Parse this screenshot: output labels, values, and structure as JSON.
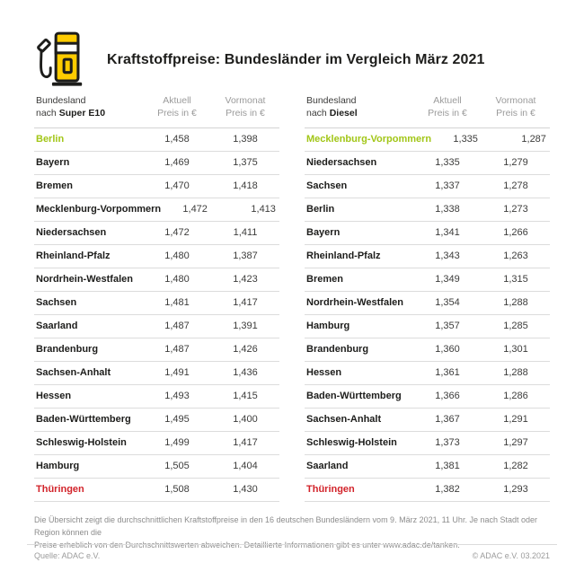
{
  "header": {
    "title": "Kraftstoffpreise: Bundesländer im Vergleich März 2021"
  },
  "colors": {
    "brand_yellow": "#FFCC00",
    "outline_black": "#1d1d1b",
    "cheapest_green": "#A2C617",
    "most_expensive_red": "#D2232A",
    "header_gray": "#9B9B9B",
    "separator_gray": "#DCDCDC"
  },
  "tables": [
    {
      "header": {
        "name_line1": "Bundesland",
        "name_line2_prefix": "nach ",
        "fuel_type": "Super E10",
        "current_line1": "Aktuell",
        "current_line2": "Preis in €",
        "previous_line1": "Vormonat",
        "previous_line2": "Preis in €"
      },
      "rows": [
        {
          "state": "Berlin",
          "current": "1,458",
          "previous": "1,398",
          "highlight": "green"
        },
        {
          "state": "Bayern",
          "current": "1,469",
          "previous": "1,375",
          "highlight": "none"
        },
        {
          "state": "Bremen",
          "current": "1,470",
          "previous": "1,418",
          "highlight": "none"
        },
        {
          "state": "Mecklenburg-Vorpommern",
          "current": "1,472",
          "previous": "1,413",
          "highlight": "none"
        },
        {
          "state": "Niedersachsen",
          "current": "1,472",
          "previous": "1,411",
          "highlight": "none"
        },
        {
          "state": "Rheinland-Pfalz",
          "current": "1,480",
          "previous": "1,387",
          "highlight": "none"
        },
        {
          "state": "Nordrhein-Westfalen",
          "current": "1,480",
          "previous": "1,423",
          "highlight": "none"
        },
        {
          "state": "Sachsen",
          "current": "1,481",
          "previous": "1,417",
          "highlight": "none"
        },
        {
          "state": "Saarland",
          "current": "1,487",
          "previous": "1,391",
          "highlight": "none"
        },
        {
          "state": "Brandenburg",
          "current": "1,487",
          "previous": "1,426",
          "highlight": "none"
        },
        {
          "state": "Sachsen-Anhalt",
          "current": "1,491",
          "previous": "1,436",
          "highlight": "none"
        },
        {
          "state": "Hessen",
          "current": "1,493",
          "previous": "1,415",
          "highlight": "none"
        },
        {
          "state": "Baden-Württemberg",
          "current": "1,495",
          "previous": "1,400",
          "highlight": "none"
        },
        {
          "state": "Schleswig-Holstein",
          "current": "1,499",
          "previous": "1,417",
          "highlight": "none"
        },
        {
          "state": "Hamburg",
          "current": "1,505",
          "previous": "1,404",
          "highlight": "none"
        },
        {
          "state": "Thüringen",
          "current": "1,508",
          "previous": "1,430",
          "highlight": "red"
        }
      ]
    },
    {
      "header": {
        "name_line1": "Bundesland",
        "name_line2_prefix": "nach ",
        "fuel_type": "Diesel",
        "current_line1": "Aktuell",
        "current_line2": "Preis in €",
        "previous_line1": "Vormonat",
        "previous_line2": "Preis in €"
      },
      "rows": [
        {
          "state": "Mecklenburg-Vorpommern",
          "current": "1,335",
          "previous": "1,287",
          "highlight": "green"
        },
        {
          "state": "Niedersachsen",
          "current": "1,335",
          "previous": "1,279",
          "highlight": "none"
        },
        {
          "state": "Sachsen",
          "current": "1,337",
          "previous": "1,278",
          "highlight": "none"
        },
        {
          "state": "Berlin",
          "current": "1,338",
          "previous": "1,273",
          "highlight": "none"
        },
        {
          "state": "Bayern",
          "current": "1,341",
          "previous": "1,266",
          "highlight": "none"
        },
        {
          "state": "Rheinland-Pfalz",
          "current": "1,343",
          "previous": "1,263",
          "highlight": "none"
        },
        {
          "state": "Bremen",
          "current": "1,349",
          "previous": "1,315",
          "highlight": "none"
        },
        {
          "state": "Nordrhein-Westfalen",
          "current": "1,354",
          "previous": "1,288",
          "highlight": "none"
        },
        {
          "state": "Hamburg",
          "current": "1,357",
          "previous": "1,285",
          "highlight": "none"
        },
        {
          "state": "Brandenburg",
          "current": "1,360",
          "previous": "1,301",
          "highlight": "none"
        },
        {
          "state": "Hessen",
          "current": "1,361",
          "previous": "1,288",
          "highlight": "none"
        },
        {
          "state": "Baden-Württemberg",
          "current": "1,366",
          "previous": "1,286",
          "highlight": "none"
        },
        {
          "state": "Sachsen-Anhalt",
          "current": "1,367",
          "previous": "1,291",
          "highlight": "none"
        },
        {
          "state": "Schleswig-Holstein",
          "current": "1,373",
          "previous": "1,297",
          "highlight": "none"
        },
        {
          "state": "Saarland",
          "current": "1,381",
          "previous": "1,282",
          "highlight": "none"
        },
        {
          "state": "Thüringen",
          "current": "1,382",
          "previous": "1,293",
          "highlight": "red"
        }
      ]
    }
  ],
  "chart_data": [
    {
      "type": "table",
      "title": "Bundesland nach Super E10 – Preis in €",
      "columns": [
        "Bundesland",
        "Aktuell Preis in €",
        "Vormonat Preis in €"
      ],
      "categories": [
        "Berlin",
        "Bayern",
        "Bremen",
        "Mecklenburg-Vorpommern",
        "Niedersachsen",
        "Rheinland-Pfalz",
        "Nordrhein-Westfalen",
        "Sachsen",
        "Saarland",
        "Brandenburg",
        "Sachsen-Anhalt",
        "Hessen",
        "Baden-Württemberg",
        "Schleswig-Holstein",
        "Hamburg",
        "Thüringen"
      ],
      "series": [
        {
          "name": "Aktuell",
          "values": [
            1.458,
            1.469,
            1.47,
            1.472,
            1.472,
            1.48,
            1.48,
            1.481,
            1.487,
            1.487,
            1.491,
            1.493,
            1.495,
            1.499,
            1.505,
            1.508
          ]
        },
        {
          "name": "Vormonat",
          "values": [
            1.398,
            1.375,
            1.418,
            1.413,
            1.411,
            1.387,
            1.423,
            1.417,
            1.391,
            1.426,
            1.436,
            1.415,
            1.4,
            1.417,
            1.404,
            1.43
          ]
        }
      ]
    },
    {
      "type": "table",
      "title": "Bundesland nach Diesel – Preis in €",
      "columns": [
        "Bundesland",
        "Aktuell Preis in €",
        "Vormonat Preis in €"
      ],
      "categories": [
        "Mecklenburg-Vorpommern",
        "Niedersachsen",
        "Sachsen",
        "Berlin",
        "Bayern",
        "Rheinland-Pfalz",
        "Bremen",
        "Nordrhein-Westfalen",
        "Hamburg",
        "Brandenburg",
        "Hessen",
        "Baden-Württemberg",
        "Sachsen-Anhalt",
        "Schleswig-Holstein",
        "Saarland",
        "Thüringen"
      ],
      "series": [
        {
          "name": "Aktuell",
          "values": [
            1.335,
            1.335,
            1.337,
            1.338,
            1.341,
            1.343,
            1.349,
            1.354,
            1.357,
            1.36,
            1.361,
            1.366,
            1.367,
            1.373,
            1.381,
            1.382
          ]
        },
        {
          "name": "Vormonat",
          "values": [
            1.287,
            1.279,
            1.278,
            1.273,
            1.266,
            1.263,
            1.315,
            1.288,
            1.285,
            1.301,
            1.288,
            1.286,
            1.291,
            1.297,
            1.282,
            1.293
          ]
        }
      ]
    }
  ],
  "footnote": {
    "line1": "Die Übersicht zeigt die durchschnittlichen Kraftstoffpreise in den 16 deutschen Bundesländern vom 9. März 2021, 11 Uhr. Je nach Stadt oder Region können die",
    "line2": "Preise erheblich von den Durchschnittswerten abweichen. Detaillierte Informationen gibt es unter www.adac.de/tanken."
  },
  "footer": {
    "source": "Quelle: ADAC e.V.",
    "copyright": "© ADAC e.V. 03.2021"
  }
}
